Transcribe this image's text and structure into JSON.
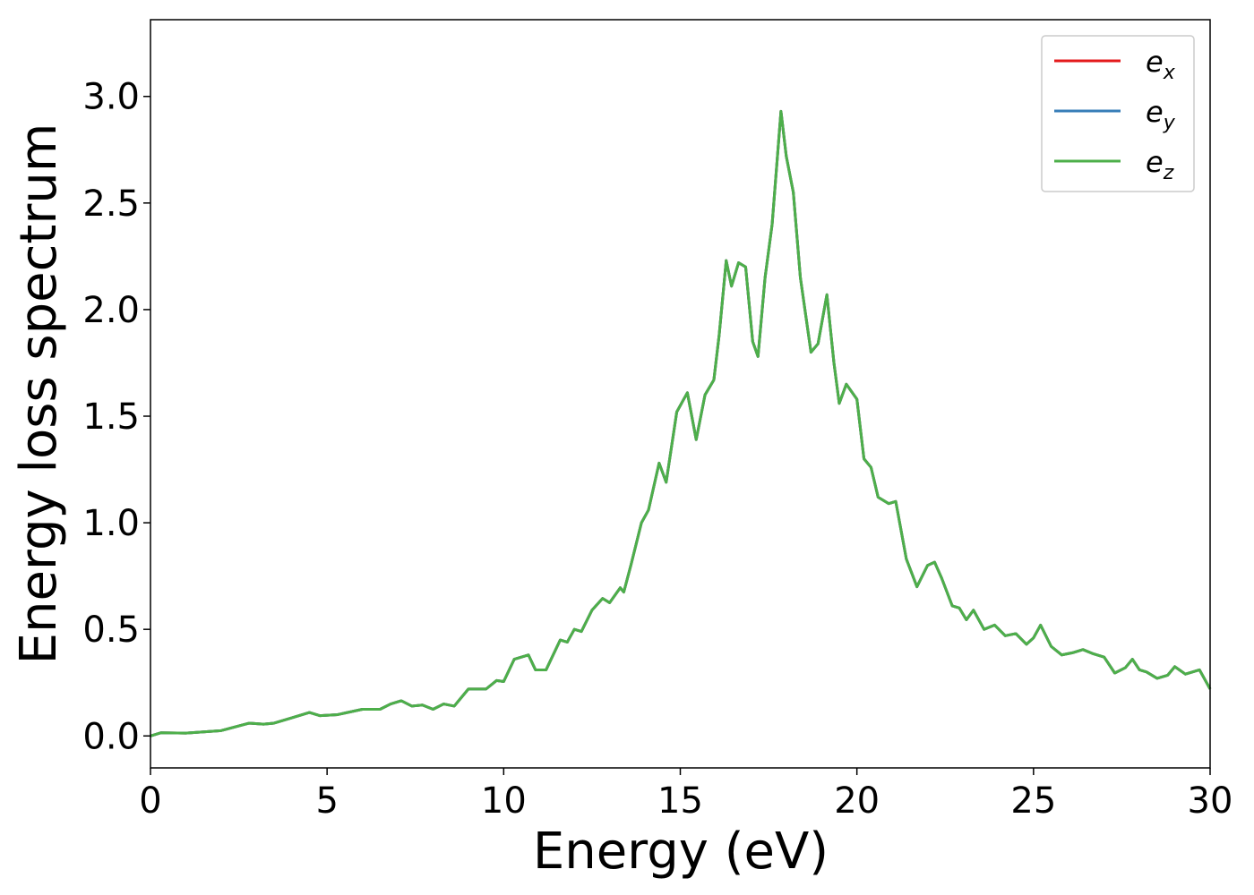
{
  "chart_data": {
    "type": "line",
    "xlabel": "Energy (eV)",
    "ylabel": "Energy loss spectrum",
    "xlim": [
      0,
      30
    ],
    "ylim": [
      -0.15,
      3.36
    ],
    "xticks": [
      0,
      5,
      10,
      15,
      20,
      25,
      30
    ],
    "yticks": [
      {
        "value": 0,
        "label": "0.0"
      },
      0.5,
      {
        "value": 1,
        "label": "1.0"
      },
      1.5,
      {
        "value": 2,
        "label": "2.0"
      },
      2.5,
      {
        "value": 3,
        "label": "3.0"
      }
    ],
    "legend": "upper right",
    "x": [
      0,
      0.3,
      1,
      2,
      2.8,
      3.2,
      3.5,
      4,
      4.5,
      4.8,
      5.3,
      6,
      6.5,
      6.8,
      7.1,
      7.4,
      7.7,
      8,
      8.3,
      8.6,
      9,
      9.5,
      9.8,
      10,
      10.3,
      10.7,
      10.9,
      11.2,
      11.6,
      11.8,
      12,
      12.2,
      12.5,
      12.8,
      13,
      13.3,
      13.4,
      13.6,
      13.9,
      14.1,
      14.4,
      14.6,
      14.9,
      15.2,
      15.45,
      15.7,
      15.95,
      16.1,
      16.3,
      16.45,
      16.65,
      16.85,
      17.05,
      17.2,
      17.4,
      17.6,
      17.85,
      18,
      18.2,
      18.4,
      18.7,
      18.9,
      19.15,
      19.35,
      19.5,
      19.7,
      20,
      20.2,
      20.4,
      20.6,
      20.9,
      21.1,
      21.4,
      21.7,
      22,
      22.2,
      22.4,
      22.7,
      22.9,
      23.1,
      23.3,
      23.6,
      23.9,
      24.2,
      24.5,
      24.8,
      25,
      25.2,
      25.5,
      25.8,
      26.1,
      26.4,
      26.7,
      27,
      27.3,
      27.6,
      27.8,
      28,
      28.2,
      28.5,
      28.8,
      29,
      29.3,
      29.7,
      30
    ],
    "series": [
      {
        "name": "ex",
        "color": "#e41a1c",
        "values": [
          0,
          0.015,
          0.013,
          0.025,
          0.06,
          0.055,
          0.06,
          0.085,
          0.11,
          0.095,
          0.1,
          0.125,
          0.125,
          0.15,
          0.165,
          0.14,
          0.145,
          0.125,
          0.15,
          0.14,
          0.22,
          0.22,
          0.26,
          0.255,
          0.36,
          0.38,
          0.31,
          0.31,
          0.45,
          0.44,
          0.5,
          0.49,
          0.59,
          0.645,
          0.625,
          0.695,
          0.675,
          0.8,
          1,
          1.06,
          1.28,
          1.19,
          1.52,
          1.61,
          1.39,
          1.6,
          1.67,
          1.88,
          2.23,
          2.11,
          2.22,
          2.2,
          1.85,
          1.78,
          2.15,
          2.4,
          2.93,
          2.72,
          2.55,
          2.15,
          1.8,
          1.84,
          2.07,
          1.75,
          1.56,
          1.65,
          1.58,
          1.3,
          1.26,
          1.12,
          1.09,
          1.1,
          0.83,
          0.7,
          0.8,
          0.815,
          0.74,
          0.61,
          0.6,
          0.545,
          0.59,
          0.5,
          0.52,
          0.47,
          0.48,
          0.43,
          0.46,
          0.52,
          0.42,
          0.38,
          0.39,
          0.405,
          0.385,
          0.37,
          0.295,
          0.32,
          0.36,
          0.31,
          0.3,
          0.27,
          0.285,
          0.325,
          0.29,
          0.31,
          0.22
        ]
      },
      {
        "name": "ey",
        "color": "#377eb8",
        "values": [
          0,
          0.015,
          0.013,
          0.025,
          0.06,
          0.055,
          0.06,
          0.085,
          0.11,
          0.095,
          0.1,
          0.125,
          0.125,
          0.15,
          0.165,
          0.14,
          0.145,
          0.125,
          0.15,
          0.14,
          0.22,
          0.22,
          0.26,
          0.255,
          0.36,
          0.38,
          0.31,
          0.31,
          0.45,
          0.44,
          0.5,
          0.49,
          0.59,
          0.645,
          0.625,
          0.695,
          0.675,
          0.8,
          1,
          1.06,
          1.28,
          1.19,
          1.52,
          1.61,
          1.39,
          1.6,
          1.67,
          1.88,
          2.23,
          2.11,
          2.22,
          2.2,
          1.85,
          1.78,
          2.15,
          2.4,
          2.93,
          2.72,
          2.55,
          2.15,
          1.8,
          1.84,
          2.07,
          1.75,
          1.56,
          1.65,
          1.58,
          1.3,
          1.26,
          1.12,
          1.09,
          1.1,
          0.83,
          0.7,
          0.8,
          0.815,
          0.74,
          0.61,
          0.6,
          0.545,
          0.59,
          0.5,
          0.52,
          0.47,
          0.48,
          0.43,
          0.46,
          0.52,
          0.42,
          0.38,
          0.39,
          0.405,
          0.385,
          0.37,
          0.295,
          0.32,
          0.36,
          0.31,
          0.3,
          0.27,
          0.285,
          0.325,
          0.29,
          0.31,
          0.22
        ]
      },
      {
        "name": "ez",
        "color": "#4daf4a",
        "values": [
          0,
          0.015,
          0.013,
          0.025,
          0.06,
          0.055,
          0.06,
          0.085,
          0.11,
          0.095,
          0.1,
          0.125,
          0.125,
          0.15,
          0.165,
          0.14,
          0.145,
          0.125,
          0.15,
          0.14,
          0.22,
          0.22,
          0.26,
          0.255,
          0.36,
          0.38,
          0.31,
          0.31,
          0.45,
          0.44,
          0.5,
          0.49,
          0.59,
          0.645,
          0.625,
          0.695,
          0.675,
          0.8,
          1,
          1.06,
          1.28,
          1.19,
          1.52,
          1.61,
          1.39,
          1.6,
          1.67,
          1.88,
          2.23,
          2.11,
          2.22,
          2.2,
          1.85,
          1.78,
          2.15,
          2.4,
          2.93,
          2.72,
          2.55,
          2.15,
          1.8,
          1.84,
          2.07,
          1.75,
          1.56,
          1.65,
          1.58,
          1.3,
          1.26,
          1.12,
          1.09,
          1.1,
          0.83,
          0.7,
          0.8,
          0.815,
          0.74,
          0.61,
          0.6,
          0.545,
          0.59,
          0.5,
          0.52,
          0.47,
          0.48,
          0.43,
          0.46,
          0.52,
          0.42,
          0.38,
          0.39,
          0.405,
          0.385,
          0.37,
          0.295,
          0.32,
          0.36,
          0.31,
          0.3,
          0.27,
          0.285,
          0.325,
          0.29,
          0.31,
          0.22
        ]
      }
    ]
  }
}
